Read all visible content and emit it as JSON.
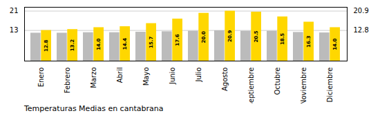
{
  "chart_data": {
    "type": "bar",
    "title": "Temperaturas Medias en cantabrana",
    "categories": [
      "Enero",
      "Febrero",
      "Marzo",
      "Abril",
      "Mayo",
      "Junio",
      "Julio",
      "Agosto",
      "Septiembre",
      "Octubre",
      "Noviembre",
      "Diciembre"
    ],
    "series": [
      {
        "color": "#BBBBBB",
        "values": [
          11.7,
          11.7,
          11.9,
          11.9,
          12.1,
          12.3,
          12.5,
          12.7,
          12.5,
          12.5,
          12.0,
          11.8
        ]
      },
      {
        "color": "#FFD700",
        "values": [
          12.8,
          13.2,
          14.0,
          14.4,
          15.7,
          17.6,
          20.0,
          20.9,
          20.5,
          18.5,
          16.3,
          14.0
        ],
        "data_labels": true,
        "value_labels": [
          "12.8",
          "13.2",
          "14.0",
          "14.4",
          "15.7",
          "17.6",
          "20.0",
          "20.9",
          "20.5",
          "18.5",
          "16.3",
          "14.0"
        ]
      }
    ],
    "ylim": [
      0,
      22.5
    ],
    "yticks": [
      12.8,
      20.9
    ],
    "y2lim": [
      0,
      22.5
    ],
    "y2ticks": [
      12.8,
      20.9
    ],
    "grid": true
  }
}
